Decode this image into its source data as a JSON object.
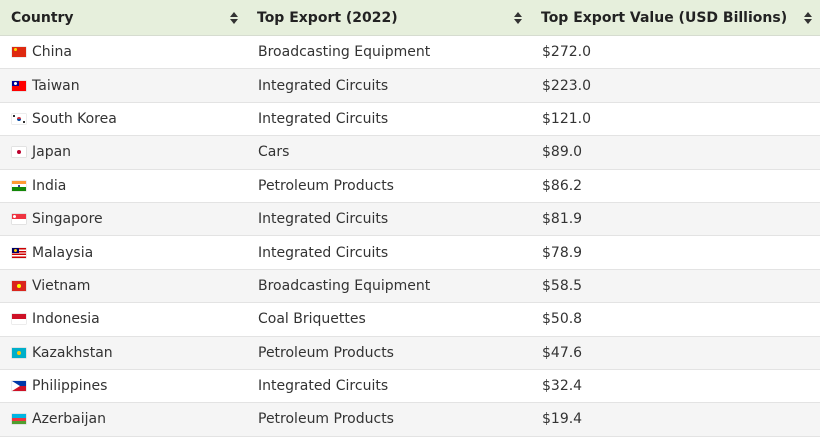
{
  "table": {
    "headers": [
      {
        "label": "Country"
      },
      {
        "label": "Top Export (2022)"
      },
      {
        "label": "Top Export Value (USD Billions)"
      }
    ],
    "rows": [
      {
        "country": "China",
        "flag": "china-flag-icon",
        "export": "Broadcasting Equipment",
        "value": "$272.0"
      },
      {
        "country": "Taiwan",
        "flag": "taiwan-flag-icon",
        "export": "Integrated Circuits",
        "value": "$223.0"
      },
      {
        "country": "South Korea",
        "flag": "south-korea-flag-icon",
        "export": "Integrated Circuits",
        "value": "$121.0"
      },
      {
        "country": "Japan",
        "flag": "japan-flag-icon",
        "export": "Cars",
        "value": "$89.0"
      },
      {
        "country": "India",
        "flag": "india-flag-icon",
        "export": "Petroleum Products",
        "value": "$86.2"
      },
      {
        "country": "Singapore",
        "flag": "singapore-flag-icon",
        "export": "Integrated Circuits",
        "value": "$81.9"
      },
      {
        "country": "Malaysia",
        "flag": "malaysia-flag-icon",
        "export": "Integrated Circuits",
        "value": "$78.9"
      },
      {
        "country": "Vietnam",
        "flag": "vietnam-flag-icon",
        "export": "Broadcasting Equipment",
        "value": "$58.5"
      },
      {
        "country": "Indonesia",
        "flag": "indonesia-flag-icon",
        "export": "Coal Briquettes",
        "value": "$50.8"
      },
      {
        "country": "Kazakhstan",
        "flag": "kazakhstan-flag-icon",
        "export": "Petroleum Products",
        "value": "$47.6"
      },
      {
        "country": "Philippines",
        "flag": "philippines-flag-icon",
        "export": "Integrated Circuits",
        "value": "$32.4"
      },
      {
        "country": "Azerbaijan",
        "flag": "azerbaijan-flag-icon",
        "export": "Petroleum Products",
        "value": "$19.4"
      }
    ]
  },
  "colors": {
    "header_bg": "#e6efdc",
    "row_alt_bg": "#f5f5f5",
    "text": "#333333"
  }
}
